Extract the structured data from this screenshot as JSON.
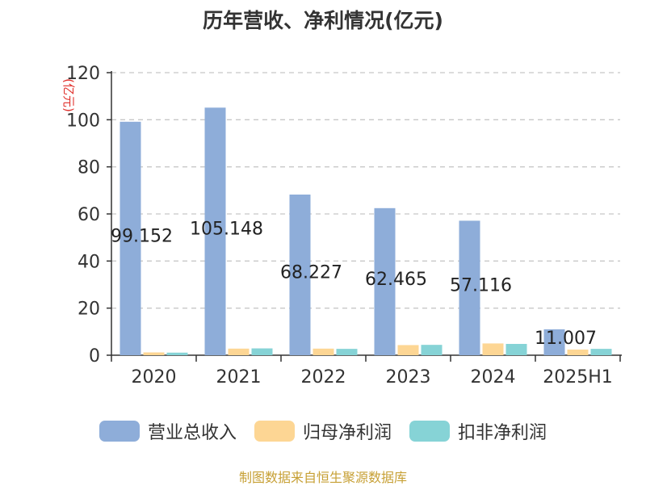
{
  "title": "历年营收、净利情况(亿元)",
  "source": "制图数据来自恒生聚源数据库",
  "colors": {
    "营业总收入": "#8eadd9",
    "归母净利润": "#fdd694",
    "扣非净利润": "#86d3d6"
  },
  "chart_data": {
    "type": "bar",
    "title": "历年营收、净利情况(亿元)",
    "ylabel": "(亿元)",
    "xlabel": "",
    "ylim": [
      0,
      120
    ],
    "yticks": [
      0,
      20,
      40,
      60,
      80,
      100,
      120
    ],
    "grid": true,
    "legend_position": "bottom",
    "categories": [
      "2020",
      "2021",
      "2022",
      "2023",
      "2024",
      "2025H1"
    ],
    "series": [
      {
        "name": "营业总收入",
        "values": [
          99.152,
          105.148,
          68.227,
          62.465,
          57.116,
          11.007
        ],
        "labels": [
          "99.152",
          "105.148",
          "68.227",
          "62.465",
          "57.116",
          "11.007"
        ]
      },
      {
        "name": "归母净利润",
        "values": [
          1.2,
          2.8,
          2.8,
          4.3,
          5.0,
          2.4
        ]
      },
      {
        "name": "扣非净利润",
        "values": [
          1.1,
          2.9,
          2.7,
          4.4,
          4.8,
          2.7
        ]
      }
    ]
  }
}
